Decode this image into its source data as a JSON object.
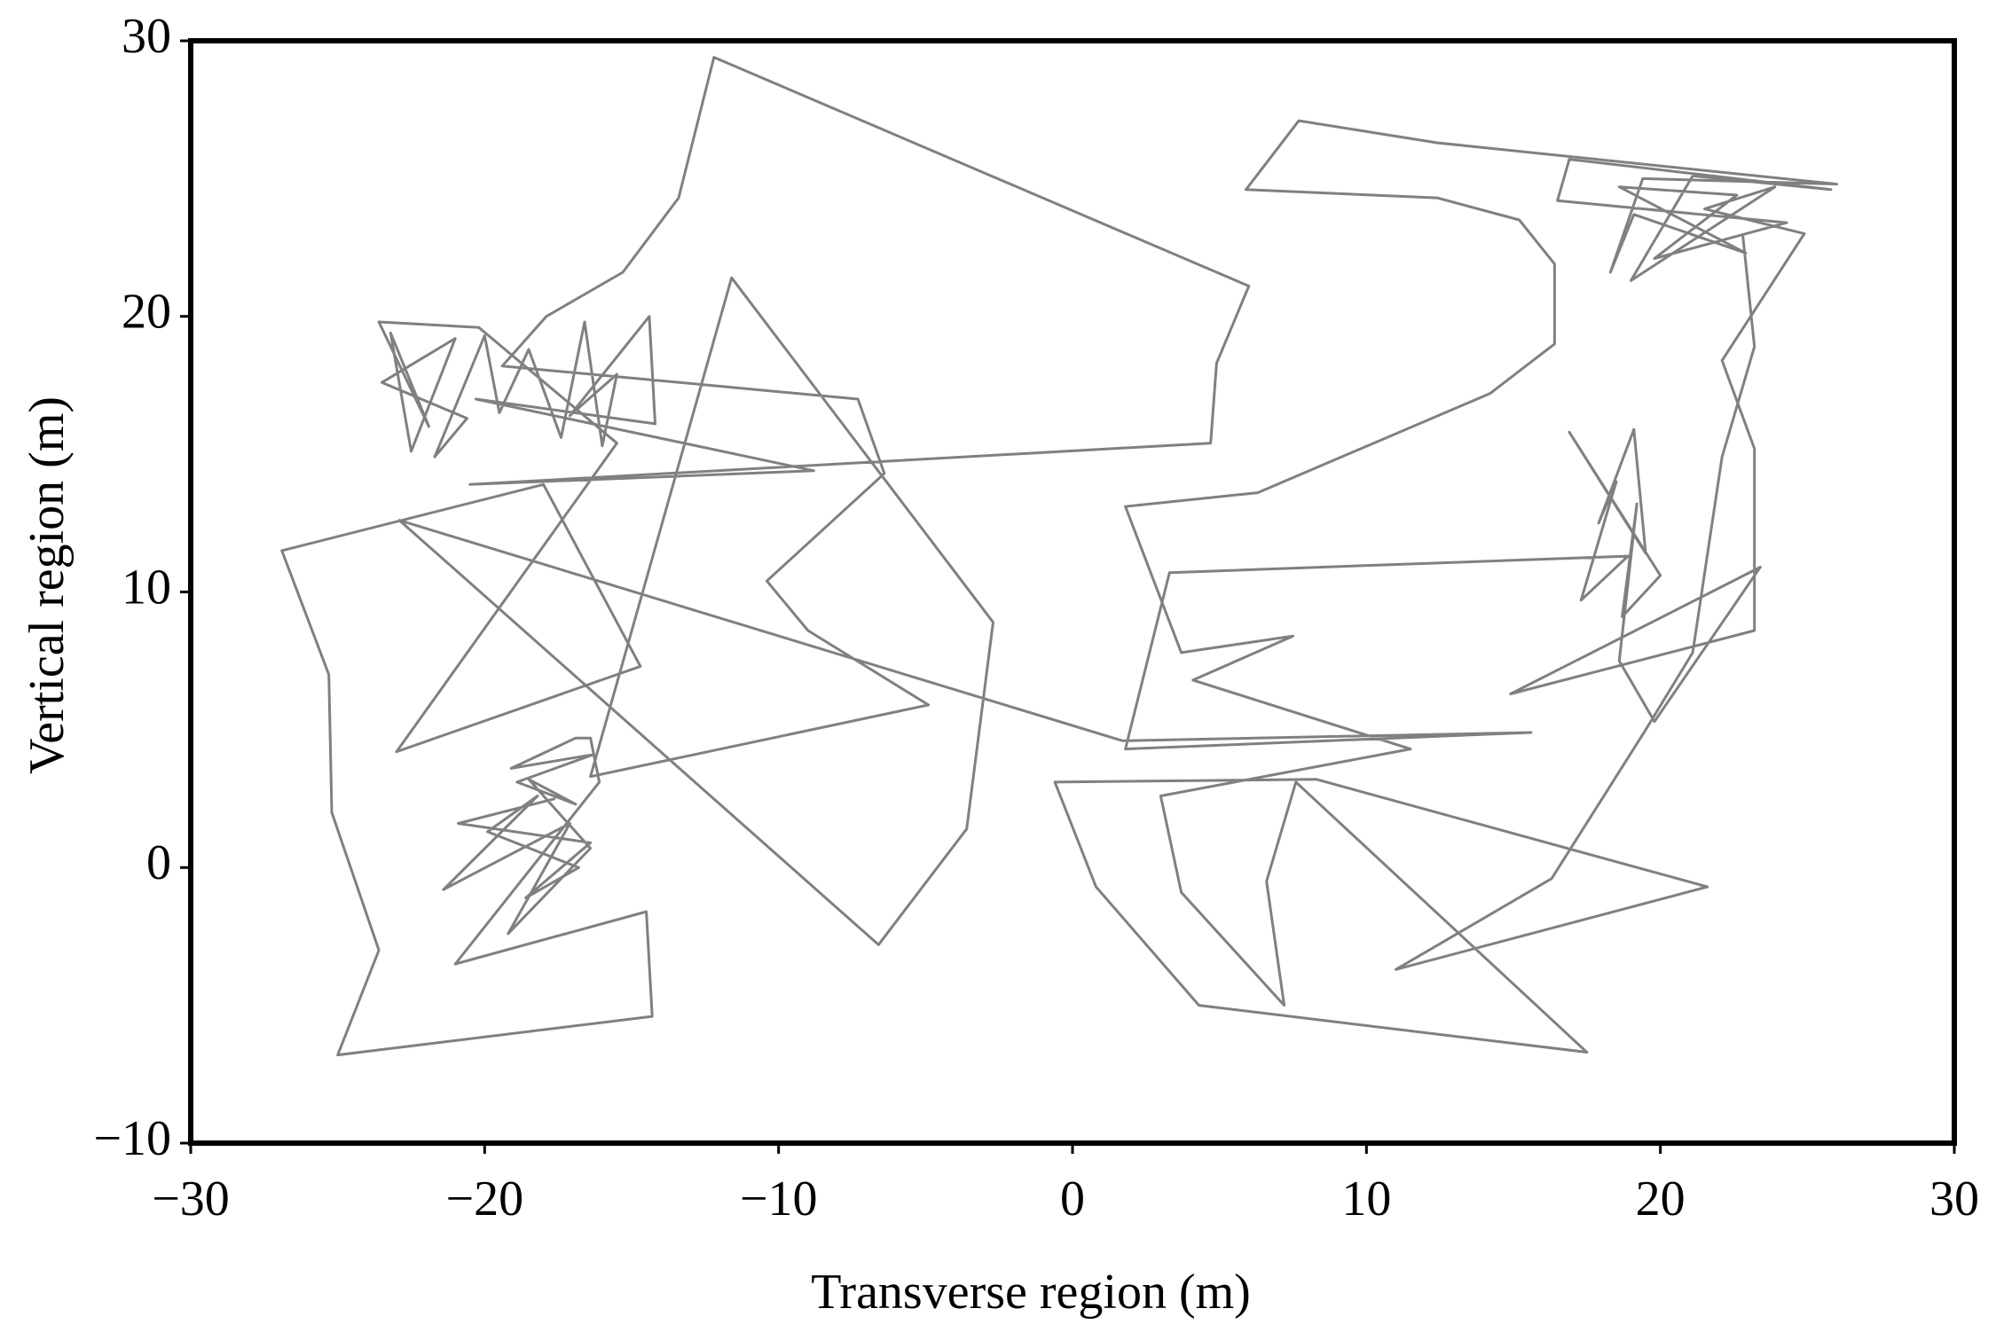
{
  "chart_data": {
    "type": "line",
    "xlabel": "Transverse region (m)",
    "ylabel": "Vertical region (m)",
    "xlim": [
      -30,
      30
    ],
    "ylim": [
      -10,
      30
    ],
    "xticks": [
      {
        "value": -30,
        "label": "−30"
      },
      {
        "value": -20,
        "label": "−20"
      },
      {
        "value": -10,
        "label": "−10"
      },
      0,
      10,
      20,
      30
    ],
    "yticks": [
      {
        "value": -10,
        "label": "−10"
      },
      0,
      10,
      20,
      30
    ],
    "color": "#808080",
    "x": [
      -17.6,
      -20.9,
      -16.4,
      -18.6,
      -16.8,
      -19.9,
      -18.2,
      -21.4,
      -17.1,
      -19.2,
      -16.4,
      -18.5,
      -16.9,
      -18.9,
      -16.3,
      -19.1,
      -16.9,
      -16.4,
      -16.1,
      -21.0,
      -14.5,
      -14.3,
      -25.0,
      -23.6,
      -25.2,
      -25.3,
      -26.9,
      -18.0,
      -14.7,
      -23.0,
      -15.5,
      -20.2,
      -23.6,
      -21.9,
      -23.2,
      -22.5,
      -21.0,
      -23.5,
      -20.6,
      -21.7,
      -20.0,
      -19.5,
      -18.5,
      -17.4,
      -16.6,
      -16.0,
      -15.5,
      -17.1,
      -14.4,
      -14.2,
      -20.3,
      -8.8,
      -20.5,
      4.7,
      4.9,
      6.0,
      -12.2,
      -13.4,
      -15.3,
      -17.9,
      -19.4,
      -7.3,
      -6.4,
      -10.4,
      -9.0,
      -4.9,
      -16.4,
      -11.6,
      -2.7,
      -3.6,
      -6.6,
      -22.9,
      1.7,
      15.6,
      1.8,
      3.3,
      18.9,
      17.3,
      18.5,
      17.9,
      19.1,
      19.5,
      16.9,
      20.0,
      18.7,
      19.2,
      18.6,
      19.8,
      23.4,
      14.9,
      23.2,
      23.2,
      22.1,
      24.9,
      21.5,
      23.9,
      19.0,
      21.1,
      25.8,
      16.9,
      16.5,
      24.3,
      19.8,
      22.6,
      18.6,
      22.9,
      19.1,
      18.3,
      19.4,
      26.0,
      12.4,
      7.7,
      5.9,
      12.4,
      15.2,
      16.4,
      16.4,
      14.2,
      6.3,
      1.8,
      3.7,
      7.5,
      4.1,
      11.5,
      3.0,
      3.7,
      7.2,
      6.6,
      7.6,
      17.5,
      4.3,
      0.8,
      -0.6,
      8.3,
      21.6,
      11.0,
      16.3,
      19.5,
      21.1,
      22.1,
      23.2,
      22.8
    ],
    "y": [
      2.5,
      1.6,
      0.9,
      -1.1,
      0.0,
      1.3,
      2.6,
      -0.8,
      1.6,
      -2.4,
      0.7,
      3.2,
      2.3,
      3.1,
      4.1,
      3.6,
      4.7,
      4.7,
      3.1,
      -3.5,
      -1.6,
      -5.4,
      -6.8,
      -3.0,
      2.0,
      7.0,
      11.5,
      13.9,
      7.3,
      4.2,
      15.4,
      19.6,
      19.8,
      16.0,
      19.4,
      15.1,
      19.2,
      17.6,
      16.3,
      14.9,
      19.3,
      16.5,
      18.8,
      15.6,
      19.8,
      15.3,
      17.9,
      16.4,
      20.0,
      16.1,
      17.0,
      14.4,
      13.9,
      15.4,
      18.3,
      21.1,
      29.4,
      24.3,
      21.6,
      20.0,
      18.2,
      17.0,
      14.3,
      10.4,
      8.6,
      5.9,
      3.3,
      21.4,
      8.9,
      1.4,
      -2.8,
      12.6,
      4.6,
      4.9,
      4.3,
      10.7,
      11.3,
      9.7,
      14.0,
      12.5,
      15.9,
      11.4,
      15.8,
      10.6,
      9.1,
      13.2,
      7.5,
      5.3,
      10.9,
      6.3,
      8.6,
      15.2,
      18.4,
      23.0,
      23.9,
      24.7,
      21.3,
      25.1,
      24.6,
      25.7,
      24.2,
      23.4,
      22.1,
      24.4,
      24.7,
      22.3,
      23.7,
      21.6,
      25.0,
      24.8,
      26.3,
      27.1,
      24.6,
      24.3,
      23.5,
      21.9,
      19.0,
      17.2,
      13.6,
      13.1,
      7.8,
      8.4,
      6.8,
      4.3,
      2.6,
      -0.9,
      -5.0,
      -0.5,
      3.1,
      -6.7,
      -5.0,
      -0.7,
      3.1,
      3.2,
      -0.7,
      -3.7,
      -0.4,
      5.0,
      7.8,
      14.9,
      18.9,
      23.0
    ]
  }
}
